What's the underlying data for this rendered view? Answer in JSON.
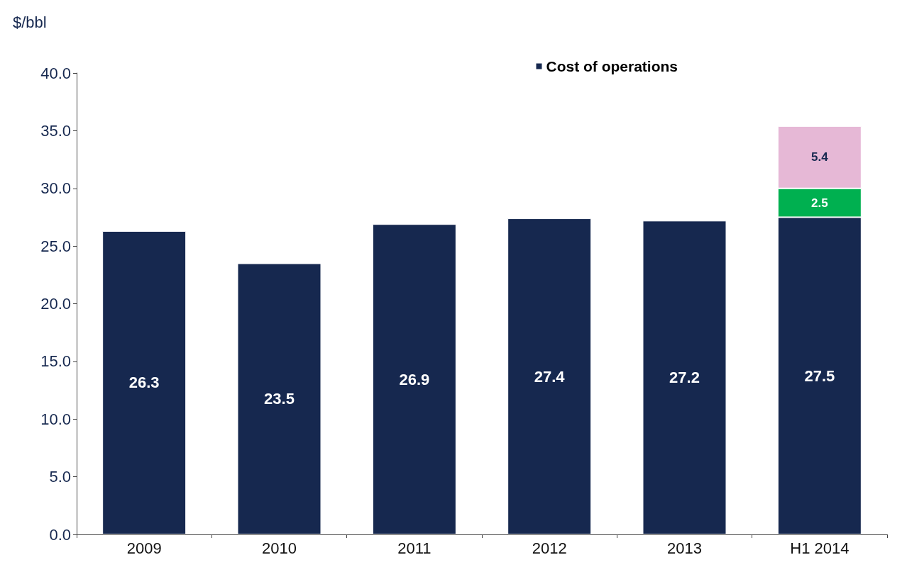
{
  "chart_data": {
    "type": "bar",
    "ylabel": "$/bbl",
    "stacked": true,
    "categories": [
      "2009",
      "2010",
      "2011",
      "2012",
      "2013",
      "H1 2014"
    ],
    "series": [
      {
        "name": "Cost of operations",
        "color": "#16284f",
        "values": [
          26.3,
          23.5,
          26.9,
          27.4,
          27.2,
          27.5
        ]
      },
      {
        "color": "#00b050",
        "values": [
          null,
          null,
          null,
          null,
          null,
          2.5
        ]
      },
      {
        "color": "#e6b8d6",
        "values": [
          null,
          null,
          null,
          null,
          null,
          5.4
        ]
      }
    ],
    "ylim": [
      0,
      40
    ],
    "yticks": [
      {
        "value": 0,
        "label": "0.0"
      },
      {
        "value": 5,
        "label": "5.0"
      },
      {
        "value": 10,
        "label": "10.0"
      },
      {
        "value": 15,
        "label": "15.0"
      },
      {
        "value": 20,
        "label": "20.0"
      },
      {
        "value": 25,
        "label": "25.0"
      },
      {
        "value": 30,
        "label": "30.0"
      },
      {
        "value": 35,
        "label": "35.0"
      },
      {
        "value": 40,
        "label": "40.0"
      }
    ],
    "data_labels": true,
    "legend": "top right",
    "grid": false
  }
}
